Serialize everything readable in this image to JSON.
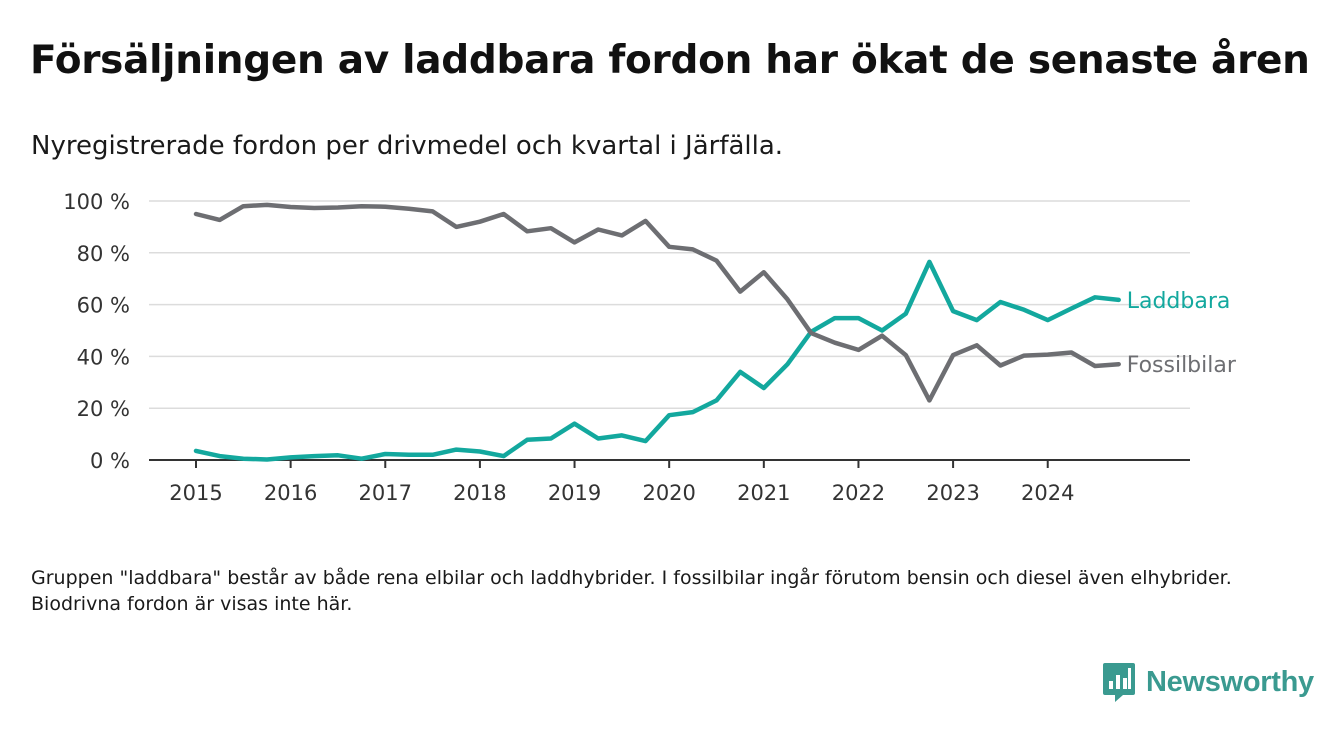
{
  "title": "Försäljningen av laddbara fordon har ökat de senaste åren",
  "subtitle": "Nyregistrerade fordon per drivmedel och kvartal i Järfälla.",
  "footnote": "Gruppen \"laddbara\" består av både rena elbilar och laddhybrider. I fossilbilar ingår förutom bensin och diesel även elhybrider. Biodrivna fordon är visas inte här.",
  "brand": {
    "name": "Newsworthy",
    "color": "#3a9a90",
    "icon": "bar-chart-logo-icon"
  },
  "chart_data": {
    "type": "line",
    "title": "Försäljningen av laddbara fordon har ökat de senaste åren",
    "subtitle": "Nyregistrerade fordon per drivmedel och kvartal i Järfälla.",
    "xlabel": "",
    "ylabel": "",
    "xlim": [
      2015,
      2026
    ],
    "ylim": [
      0,
      100
    ],
    "grid": true,
    "y_ticks": [
      0,
      20,
      40,
      60,
      80,
      100
    ],
    "y_tick_labels": [
      "0 %",
      "20 %",
      "40 %",
      "60 %",
      "80 %",
      "100 %"
    ],
    "x_ticks": [
      2015,
      2016,
      2017,
      2018,
      2019,
      2020,
      2021,
      2022,
      2023,
      2024
    ],
    "x_tick_labels": [
      "2015",
      "2016",
      "2017",
      "2018",
      "2019",
      "2020",
      "2021",
      "2022",
      "2023",
      "2024"
    ],
    "x": [
      2015.0,
      2015.25,
      2015.5,
      2015.75,
      2016.0,
      2016.25,
      2016.5,
      2016.75,
      2017.0,
      2017.25,
      2017.5,
      2017.75,
      2018.0,
      2018.25,
      2018.5,
      2018.75,
      2019.0,
      2019.25,
      2019.5,
      2019.75,
      2020.0,
      2020.25,
      2020.5,
      2020.75,
      2021.0,
      2021.25,
      2021.5,
      2021.75,
      2022.0,
      2022.25,
      2022.5,
      2022.75,
      2023.0,
      2023.25,
      2023.5,
      2023.75,
      2024.0,
      2024.25,
      2024.5,
      2024.75
    ],
    "series": [
      {
        "name": "Laddbara",
        "color": "#13a89e",
        "values": [
          3.5,
          1.5,
          0.5,
          0.2,
          1.0,
          1.5,
          1.8,
          0.5,
          2.3,
          2.0,
          2.0,
          4.0,
          3.3,
          1.5,
          7.8,
          8.3,
          14.0,
          8.3,
          9.5,
          7.3,
          17.3,
          18.5,
          23.0,
          34.0,
          27.8,
          37.0,
          49.5,
          54.8,
          54.8,
          50.0,
          56.5,
          76.5,
          57.5,
          54.0,
          61.0,
          58.0,
          54.0,
          58.5,
          62.8,
          61.8
        ]
      },
      {
        "name": "Fossilbilar",
        "color": "#6d6e72",
        "values": [
          95.0,
          92.7,
          98.0,
          98.5,
          97.7,
          97.3,
          97.5,
          98.0,
          97.8,
          97.0,
          96.0,
          90.0,
          92.0,
          95.0,
          88.3,
          89.5,
          84.0,
          89.0,
          86.7,
          92.3,
          82.3,
          81.3,
          77.0,
          65.0,
          72.5,
          62.0,
          49.0,
          45.3,
          42.5,
          48.0,
          40.5,
          23.0,
          40.5,
          44.3,
          36.5,
          40.3,
          40.7,
          41.5,
          36.3,
          37.0
        ]
      }
    ]
  }
}
